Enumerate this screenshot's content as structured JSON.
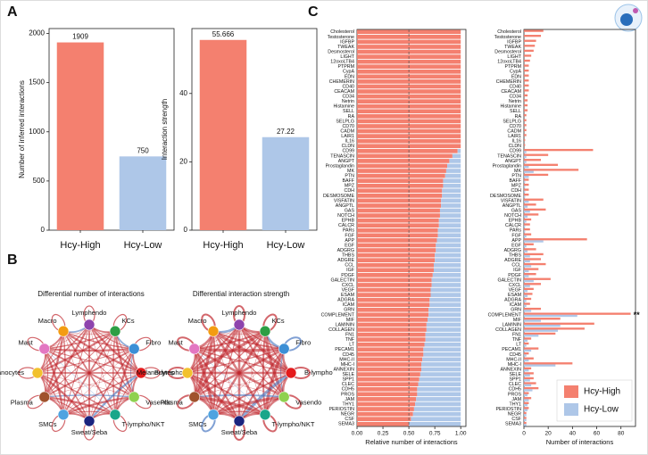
{
  "panels": [
    "A",
    "B",
    "C"
  ],
  "chart_data": [
    {
      "type": "bar",
      "categories": [
        "Hcy-High",
        "Hcy-Low"
      ],
      "values": [
        1909,
        750
      ],
      "colors": [
        "#f4806f",
        "#aec7e8"
      ],
      "ylabel": "Number of inferred interactions",
      "ylim": [
        0,
        2050
      ],
      "yticks": [
        0,
        500,
        1000,
        1500,
        2000
      ]
    },
    {
      "type": "bar",
      "categories": [
        "Hcy-High",
        "Hcy-Low"
      ],
      "values": [
        55.666,
        27.22
      ],
      "colors": [
        "#f4806f",
        "#aec7e8"
      ],
      "ylabel": "Interaction strength",
      "ylim": [
        0,
        59
      ],
      "yticks": [
        0,
        20,
        40
      ]
    },
    {
      "type": "barh",
      "stacked": true,
      "xlabel": "Relative number of interactions",
      "ref_line": 0.5,
      "categories": [
        "Cholesterol",
        "Testosterone",
        "IGFBP",
        "TWEAK",
        "Desmosterol",
        "LIGHT",
        "12oxoLTB4",
        "PTPRM",
        "CypA",
        "EDN",
        "CHEMERIN",
        "CD40",
        "CEACAM",
        "CD34",
        "Netrin",
        "Histamine",
        "SELL",
        "RA",
        "SELPLG",
        "CD70",
        "CADM",
        "LAIR1",
        "IL16",
        "CLDN",
        "CD99",
        "TENASCIN",
        "ANGPT",
        "Prostaglandin",
        "MK",
        "PTN",
        "BAFF",
        "MPZ",
        "CDH",
        "DESMOSOME",
        "VISFATIN",
        "ANGPTL",
        "GAS",
        "NOTCH",
        "EPHB",
        "CALCR",
        "PARs",
        "FGF",
        "APP",
        "EGF",
        "ADGRG",
        "THBS",
        "ADGRE",
        "CCL",
        "IGF",
        "PDGF",
        "GALECTIN",
        "CXCL",
        "VEGF",
        "ESAM",
        "ADGRA",
        "ICAM",
        "GRN",
        "COMPLEMENT",
        "MIF",
        "LAMININ",
        "COLLAGEN",
        "FN1",
        "TNF",
        "LT",
        "PECAM1",
        "CD45",
        "MHC-II",
        "MHC-I",
        "ANNEXIN",
        "SELE",
        "SPP1",
        "CLEC",
        "CDH5",
        "PROS",
        "JAM",
        "THY1",
        "PERIOSTIN",
        "NEGR",
        "CSF",
        "SEMA3"
      ],
      "label_colors": [
        "#e8685a",
        "#e8685a",
        "#e8685a",
        "#e8685a",
        "#e8685a",
        "#e8685a",
        "#e8685a",
        "#e8685a",
        "#e8685a",
        "#e8685a",
        "#e8685a",
        "#e8685a",
        "#e8685a",
        "#e8685a",
        "#e8685a",
        "#e8685a",
        "#e8685a",
        "#e8685a",
        "#e8685a",
        "#e8685a",
        "#e8685a",
        "#e8685a",
        "#e8685a",
        "#e8685a",
        "#e8685a",
        "#e8685a",
        "#e8685a",
        "#e8685a",
        "#e8685a",
        "#e8685a",
        "#111111",
        "#111111",
        "#111111",
        "#111111",
        "#e8685a",
        "#e8685a",
        "#e8685a",
        "#e8685a",
        "#111111",
        "#111111",
        "#111111",
        "#111111",
        "#e8685a",
        "#e8685a",
        "#111111",
        "#e8685a",
        "#e8685a",
        "#e8685a",
        "#e8685a",
        "#e8685a",
        "#e8685a",
        "#e8685a",
        "#111111",
        "#111111",
        "#111111",
        "#111111",
        "#e8685a",
        "#e8685a",
        "#111111",
        "#e8685a",
        "#e8685a",
        "#e8685a",
        "#111111",
        "#e8685a",
        "#e8685a",
        "#111111",
        "#111111",
        "#e8685a",
        "#111111",
        "#111111",
        "#111111",
        "#111111",
        "#111111",
        "#111111",
        "#111111",
        "#111111",
        "#111111",
        "#111111",
        "#111111",
        "#111111"
      ],
      "series": [
        {
          "color": "#f4806f",
          "values": [
            1,
            1,
            1,
            1,
            1,
            1,
            1,
            1,
            1,
            1,
            1,
            1,
            1,
            1,
            1,
            1,
            1,
            1,
            1,
            1,
            1,
            1,
            1,
            1,
            0.97,
            0.92,
            0.89,
            0.87,
            0.86,
            0.85,
            0.83,
            0.83,
            0.82,
            0.82,
            0.81,
            0.81,
            0.8,
            0.8,
            0.79,
            0.79,
            0.78,
            0.78,
            0.77,
            0.76,
            0.76,
            0.75,
            0.75,
            0.74,
            0.74,
            0.73,
            0.72,
            0.72,
            0.71,
            0.71,
            0.7,
            0.7,
            0.69,
            0.69,
            0.68,
            0.67,
            0.67,
            0.66,
            0.66,
            0.65,
            0.64,
            0.64,
            0.63,
            0.62,
            0.62,
            0.61,
            0.6,
            0.59,
            0.58,
            0.58,
            0.57,
            0.56,
            0.55,
            0.54,
            0.52,
            0.5
          ]
        },
        {
          "color": "#aec7e8",
          "values": [
            0,
            0,
            0,
            0,
            0,
            0,
            0,
            0,
            0,
            0,
            0,
            0,
            0,
            0,
            0,
            0,
            0,
            0,
            0,
            0,
            0,
            0,
            0,
            0,
            0.03,
            0.08,
            0.11,
            0.13,
            0.14,
            0.15,
            0.17,
            0.17,
            0.18,
            0.18,
            0.19,
            0.19,
            0.2,
            0.2,
            0.21,
            0.21,
            0.22,
            0.22,
            0.23,
            0.24,
            0.24,
            0.25,
            0.25,
            0.26,
            0.26,
            0.27,
            0.28,
            0.28,
            0.29,
            0.29,
            0.3,
            0.3,
            0.31,
            0.31,
            0.32,
            0.33,
            0.33,
            0.34,
            0.34,
            0.35,
            0.36,
            0.36,
            0.37,
            0.38,
            0.38,
            0.39,
            0.4,
            0.41,
            0.42,
            0.42,
            0.43,
            0.44,
            0.45,
            0.46,
            0.48,
            0.5
          ]
        }
      ],
      "xlim": [
        0,
        1.05
      ],
      "xticks": [
        {
          "value": 0,
          "label": "0.00"
        },
        {
          "value": 0.25,
          "label": "0.25"
        },
        {
          "value": 0.5,
          "label": "0.50"
        },
        {
          "value": 0.75,
          "label": "0.75"
        },
        {
          "value": 1,
          "label": "1.00"
        }
      ]
    },
    {
      "type": "barh",
      "stacked": false,
      "xlabel": "Number of interactions",
      "legend": "bottom-right",
      "categories": [
        "Cholesterol",
        "Testosterone",
        "IGFBP",
        "TWEAK",
        "Desmosterol",
        "LIGHT",
        "12oxoLTB4",
        "PTPRM",
        "CypA",
        "EDN",
        "CHEMERIN",
        "CD40",
        "CEACAM",
        "CD34",
        "Netrin",
        "Histamine",
        "SELL",
        "RA",
        "SELPLG",
        "CD70",
        "CADM",
        "LAIR1",
        "IL16",
        "CLDN",
        "CD99",
        "TENASCIN",
        "ANGPT",
        "Prostaglandin",
        "MK",
        "PTN",
        "BAFF",
        "MPZ",
        "CDH",
        "DESMOSOME",
        "VISFATIN",
        "ANGPTL",
        "GAS",
        "NOTCH",
        "EPHB",
        "CALCR",
        "PARs",
        "FGF",
        "APP",
        "EGF",
        "ADGRG",
        "THBS",
        "ADGRE",
        "CCL",
        "IGF",
        "PDGF",
        "GALECTIN",
        "CXCL",
        "VEGF",
        "ESAM",
        "ADGRA",
        "ICAM",
        "GRN",
        "COMPLEMENT",
        "MIF",
        "LAMININ",
        "COLLAGEN",
        "FN1",
        "TNF",
        "LT",
        "PECAM1",
        "CD45",
        "MHC-II",
        "MHC-I",
        "ANNEXIN",
        "SELE",
        "SPP1",
        "CLEC",
        "CDH5",
        "PROS",
        "JAM",
        "THY1",
        "PERIOSTIN",
        "NEGR",
        "CSF",
        "SEMA3"
      ],
      "label_colors": [
        "#e8685a",
        "#e8685a",
        "#e8685a",
        "#e8685a",
        "#e8685a",
        "#e8685a",
        "#e8685a",
        "#e8685a",
        "#e8685a",
        "#e8685a",
        "#e8685a",
        "#e8685a",
        "#e8685a",
        "#e8685a",
        "#e8685a",
        "#e8685a",
        "#e8685a",
        "#e8685a",
        "#e8685a",
        "#e8685a",
        "#e8685a",
        "#e8685a",
        "#e8685a",
        "#e8685a",
        "#e8685a",
        "#e8685a",
        "#e8685a",
        "#e8685a",
        "#e8685a",
        "#e8685a",
        "#111111",
        "#111111",
        "#111111",
        "#111111",
        "#e8685a",
        "#e8685a",
        "#e8685a",
        "#e8685a",
        "#111111",
        "#111111",
        "#111111",
        "#111111",
        "#e8685a",
        "#e8685a",
        "#111111",
        "#e8685a",
        "#e8685a",
        "#e8685a",
        "#e8685a",
        "#e8685a",
        "#e8685a",
        "#e8685a",
        "#111111",
        "#111111",
        "#111111",
        "#111111",
        "#e8685a",
        "#e8685a",
        "#111111",
        "#e8685a",
        "#e8685a",
        "#e8685a",
        "#111111",
        "#e8685a",
        "#e8685a",
        "#111111",
        "#111111",
        "#e8685a",
        "#111111",
        "#111111",
        "#111111",
        "#111111",
        "#111111",
        "#111111",
        "#111111",
        "#111111",
        "#111111",
        "#111111",
        "#111111",
        "#111111"
      ],
      "series": [
        {
          "name": "Hcy-High",
          "color": "#f4806f",
          "values": [
            16,
            14,
            10,
            9,
            8,
            6,
            5,
            4,
            4,
            4,
            4,
            4,
            4,
            3,
            3,
            3,
            3,
            2,
            2,
            2,
            2,
            2,
            1,
            1,
            57,
            20,
            14,
            28,
            45,
            20,
            4,
            4,
            4,
            4,
            16,
            10,
            18,
            12,
            6,
            5,
            5,
            6,
            52,
            8,
            10,
            16,
            14,
            18,
            12,
            10,
            22,
            14,
            8,
            7,
            6,
            5,
            14,
            88,
            30,
            58,
            50,
            26,
            6,
            4,
            12,
            4,
            8,
            40,
            6,
            8,
            8,
            10,
            12,
            4,
            6,
            4,
            4,
            2,
            2,
            2
          ]
        },
        {
          "name": "Hcy-Low",
          "color": "#aec7e8",
          "values": [
            0,
            0,
            0,
            0,
            0,
            0,
            0,
            0,
            0,
            0,
            0,
            0,
            0,
            0,
            0,
            0,
            0,
            0,
            0,
            0,
            0,
            0,
            0,
            0,
            2,
            2,
            2,
            4,
            8,
            4,
            1,
            1,
            1,
            1,
            4,
            3,
            5,
            3,
            2,
            1,
            1,
            2,
            16,
            2,
            3,
            5,
            5,
            6,
            4,
            4,
            8,
            5,
            3,
            3,
            2,
            2,
            6,
            44,
            14,
            30,
            28,
            12,
            3,
            2,
            6,
            2,
            4,
            26,
            4,
            5,
            5,
            6,
            7,
            3,
            4,
            3,
            3,
            2,
            2,
            2
          ]
        }
      ],
      "annotations": [
        {
          "text": "**",
          "category": "COMPLEMENT",
          "color": "#d4a017"
        }
      ],
      "xlim": [
        0,
        92
      ],
      "xticks": [
        0,
        20,
        40,
        60,
        80
      ]
    }
  ],
  "networks": [
    {
      "title": "Differential number of interactions"
    },
    {
      "title": "Differential interaction strength"
    }
  ],
  "cell_types": [
    {
      "name": "Lymphendo",
      "color": "#8e44ad"
    },
    {
      "name": "KCs",
      "color": "#2e9e44"
    },
    {
      "name": "Fibro",
      "color": "#3c8fd6"
    },
    {
      "name": "B-lympho",
      "color": "#e41a1c"
    },
    {
      "name": "Vasendo",
      "color": "#8fd14f"
    },
    {
      "name": "T-lympho/NKT",
      "color": "#1aa68a"
    },
    {
      "name": "Sweat/Seba",
      "color": "#1a237e"
    },
    {
      "name": "SMCs",
      "color": "#4fa3e0"
    },
    {
      "name": "Plasma",
      "color": "#a0522d"
    },
    {
      "name": "Melanocytes",
      "color": "#f2c12e"
    },
    {
      "name": "Mast",
      "color": "#e377c2"
    },
    {
      "name": "Macro",
      "color": "#f39c12"
    }
  ]
}
